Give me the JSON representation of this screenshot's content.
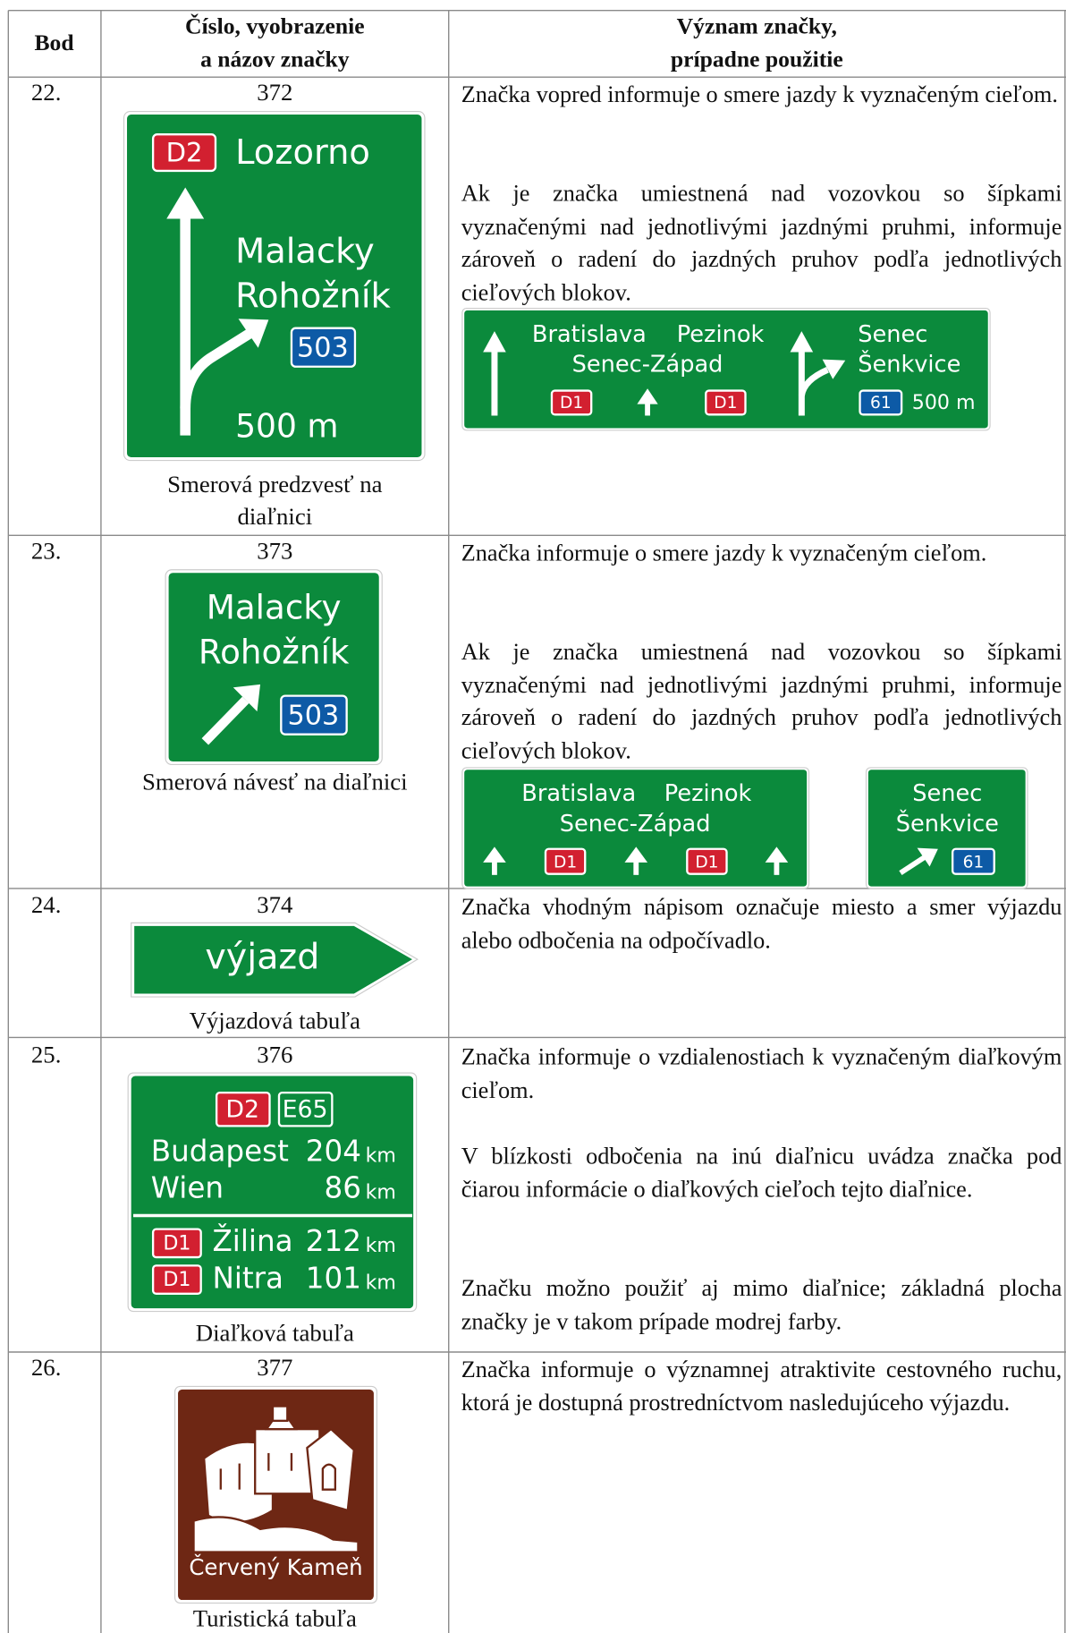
{
  "header": {
    "bod": "Bod",
    "sign": [
      "Číslo, vyobrazenie",
      "a názov značky"
    ],
    "meaning": [
      "Význam značky,",
      "prípadne použitie"
    ]
  },
  "rows": [
    {
      "bod": "22.",
      "number": "372",
      "sign": {
        "road": "D2",
        "destination": "Lozorno",
        "branch": [
          "Malacky",
          "Rohožník"
        ],
        "route": "503",
        "distance": "500 m"
      },
      "name": [
        "Smerová predzvesť na",
        "diaľnici"
      ],
      "meaning": [
        "Značka vopred informuje o smere jazdy k vyznačeným cieľom.",
        "Ak je značka umiestnená nad vozovkou so šípkami vyznačenými nad jednotlivými jazdnými pruhmi, informuje zároveň o radení do jazdných pruhov podľa jednotlivých cieľových blokov."
      ],
      "example": {
        "left": [
          "Bratislava",
          "Pezinok",
          "Senec-Západ"
        ],
        "left_roads": [
          "D1",
          "D1"
        ],
        "right": [
          "Senec",
          "Šenkvice"
        ],
        "right_route": "61",
        "distance": "500 m"
      }
    },
    {
      "bod": "23.",
      "number": "373",
      "sign": {
        "destinations": [
          "Malacky",
          "Rohožník"
        ],
        "route": "503"
      },
      "name": [
        "Smerová návesť na diaľnici"
      ],
      "meaning": [
        "Značka informuje o smere jazdy k vyznačeným cieľom.",
        "Ak je značka umiestnená nad vozovkou so šípkami vyznačenými nad jednotlivými jazdnými pruhmi, informuje zároveň o radení do jazdných pruhov podľa jednotlivých cieľových blokov."
      ],
      "example": {
        "left": [
          "Bratislava",
          "Pezinok",
          "Senec-Západ"
        ],
        "left_roads": [
          "D1",
          "D1"
        ],
        "right": [
          "Senec",
          "Šenkvice"
        ],
        "right_route": "61"
      }
    },
    {
      "bod": "24.",
      "number": "374",
      "sign": {
        "text": "výjazd"
      },
      "name": [
        "Výjazdová tabuľa"
      ],
      "meaning": [
        "Značka vhodným nápisom označuje miesto a smer výjazdu alebo odbočenia na odpočívadlo."
      ]
    },
    {
      "bod": "25.",
      "number": "376",
      "sign": {
        "roads": [
          "D2",
          "E65"
        ],
        "destinations": [
          {
            "place": "Budapest",
            "distance": "204",
            "unit": "km"
          },
          {
            "place": "Wien",
            "distance": "86",
            "unit": "km"
          }
        ],
        "other": [
          {
            "road": "D1",
            "place": "Žilina",
            "distance": "212",
            "unit": "km"
          },
          {
            "road": "D1",
            "place": "Nitra",
            "distance": "101",
            "unit": "km"
          }
        ]
      },
      "name": [
        "Diaľková tabuľa"
      ],
      "meaning": [
        "Značka informuje o vzdialenostiach k vyznačeným diaľkovým cieľom.",
        "V blízkosti odbočenia na inú diaľnicu uvádza značka pod čiarou informácie o diaľkových cieľoch tejto diaľnice.",
        "Značku možno použiť aj mimo diaľnice; základná plocha značky je v takom prípade modrej farby."
      ]
    },
    {
      "bod": "26.",
      "number": "377",
      "sign": {
        "text": "Červený Kameň"
      },
      "name": [
        "Turistická tabuľa"
      ],
      "meaning": [
        "Značka informuje o významnej atraktivite cestovného ruchu, ktorá je dostupná prostredníctvom nasledujúceho výjazdu."
      ]
    }
  ]
}
